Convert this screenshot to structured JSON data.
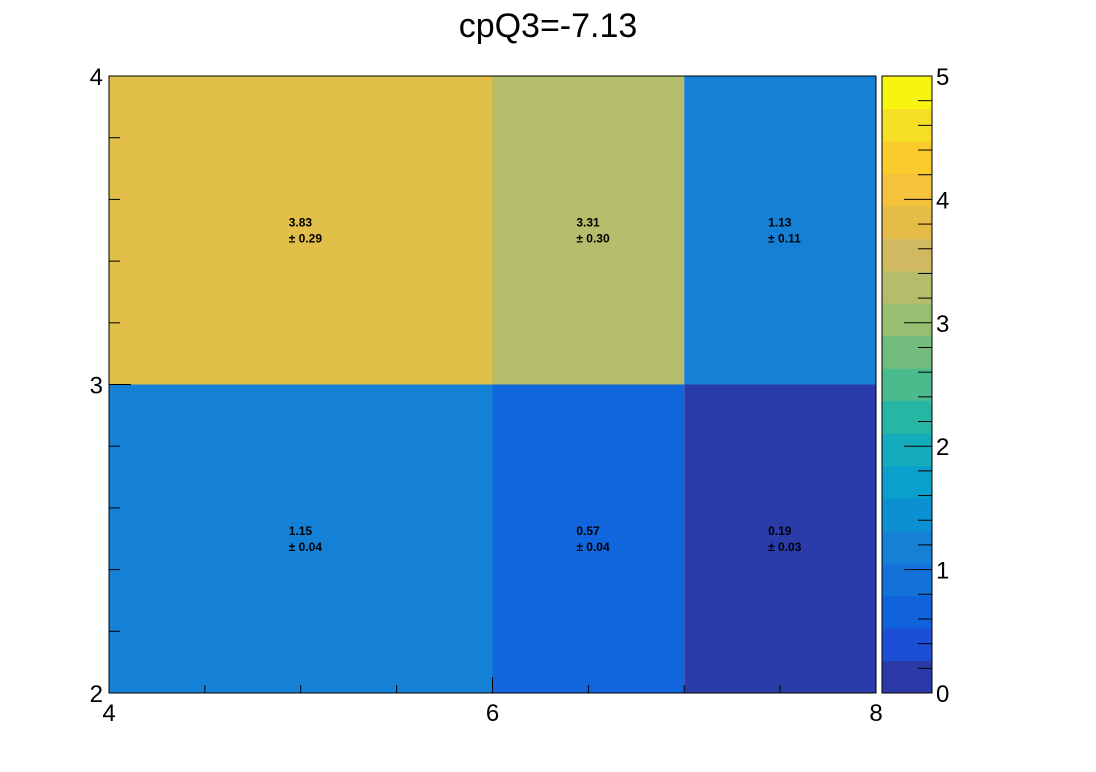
{
  "chart_data": {
    "type": "heatmap",
    "title": "cpQ3=-7.13",
    "xlabel": "",
    "ylabel": "",
    "x_edges": [
      4,
      6,
      7,
      8
    ],
    "y_edges": [
      2,
      3,
      4
    ],
    "xlim": [
      4,
      8
    ],
    "ylim": [
      2,
      4
    ],
    "x_ticks": [
      "4",
      "6",
      "8"
    ],
    "y_ticks": [
      "2",
      "3",
      "4"
    ],
    "z_range": [
      0,
      5
    ],
    "z_ticks": [
      "0",
      "1",
      "2",
      "3",
      "4",
      "5"
    ],
    "cells": [
      {
        "x": [
          4,
          6
        ],
        "y": [
          2,
          3
        ],
        "value": 1.15,
        "label_value": "1.15",
        "label_error": "± 0.04",
        "color": "#1581d6"
      },
      {
        "x": [
          6,
          7
        ],
        "y": [
          2,
          3
        ],
        "value": 0.57,
        "label_value": "0.57",
        "label_error": "± 0.04",
        "color": "#1166dd"
      },
      {
        "x": [
          7,
          8
        ],
        "y": [
          2,
          3
        ],
        "value": 0.19,
        "label_value": "0.19",
        "label_error": "± 0.03",
        "color": "#2a3ca9"
      },
      {
        "x": [
          4,
          6
        ],
        "y": [
          3,
          4
        ],
        "value": 3.83,
        "label_value": "3.83",
        "label_error": "± 0.29",
        "color": "#e1bf49"
      },
      {
        "x": [
          6,
          7
        ],
        "y": [
          3,
          4
        ],
        "value": 3.31,
        "label_value": "3.31",
        "label_error": "± 0.30",
        "color": "#b4be6c"
      },
      {
        "x": [
          7,
          8
        ],
        "y": [
          3,
          4
        ],
        "value": 1.13,
        "label_value": "1.13",
        "label_error": "± 0.11",
        "color": "#1581d6"
      }
    ],
    "palette": [
      "#2b3aa8",
      "#1d4ed6",
      "#1163dc",
      "#1372d9",
      "#1581d6",
      "#0c90d4",
      "#0aa0cc",
      "#14abbc",
      "#27b5a4",
      "#4bbb8d",
      "#72bd7e",
      "#96bf72",
      "#b5bd6a",
      "#d1b962",
      "#e4bd49",
      "#f5c23d",
      "#fbca2d",
      "#f6df22",
      "#f9f40f"
    ]
  }
}
